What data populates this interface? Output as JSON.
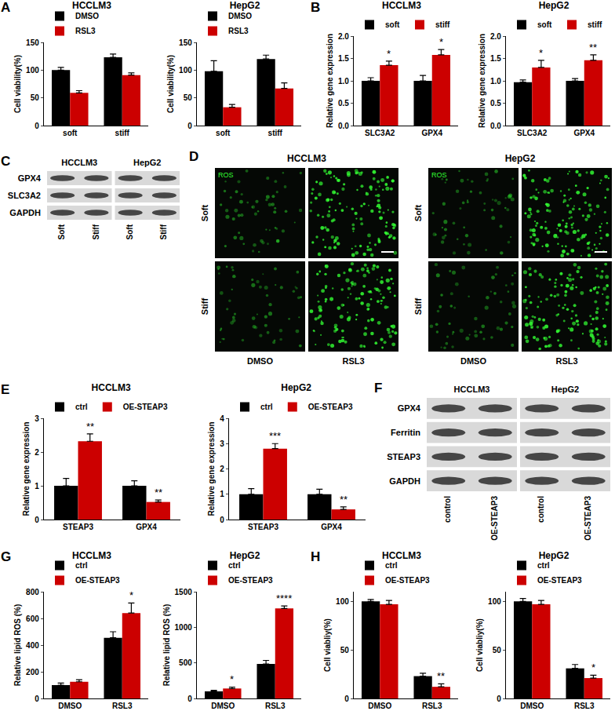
{
  "chart_data": [
    {
      "panel": "A",
      "type": "bar",
      "title": "HCCLM3",
      "categories": [
        "soft",
        "stiff"
      ],
      "ylabel": "Cell viability(%)",
      "ylim": [
        0,
        150
      ],
      "yticks": [
        0,
        50,
        100,
        150
      ],
      "grid": false,
      "legend": "top",
      "series": [
        {
          "name": "DMSO",
          "color": "#000000",
          "values": [
            100,
            123
          ],
          "errors": [
            5,
            6
          ]
        },
        {
          "name": "RSL3",
          "color": "#cc0000",
          "values": [
            59,
            91
          ],
          "errors": [
            4,
            4
          ]
        }
      ]
    },
    {
      "type": "bar",
      "title": "HepG2",
      "categories": [
        "soft",
        "stiff"
      ],
      "ylabel": "Cell viability(%)",
      "ylim": [
        0,
        150
      ],
      "yticks": [
        0,
        50,
        100,
        150
      ],
      "grid": false,
      "legend": "top",
      "series": [
        {
          "name": "DMSO",
          "color": "#000000",
          "values": [
            98,
            120
          ],
          "errors": [
            19,
            7
          ]
        },
        {
          "name": "RSL3",
          "color": "#cc0000",
          "values": [
            33,
            67
          ],
          "errors": [
            5,
            10
          ]
        }
      ]
    },
    {
      "panel": "B",
      "type": "bar",
      "title": "HCCLM3",
      "categories": [
        "SLC3A2",
        "GPX4"
      ],
      "ylabel": "Relative gene expression",
      "ylim": [
        0,
        2
      ],
      "yticks": [
        {
          "value": 0,
          "label": "0.0"
        },
        {
          "value": 0.5,
          "label": "0.5"
        },
        {
          "value": 1,
          "label": "1.0"
        },
        {
          "value": 1.5,
          "label": "1.5"
        },
        {
          "value": 2,
          "label": "2.0"
        }
      ],
      "grid": false,
      "legend": "top",
      "series": [
        {
          "name": "soft",
          "color": "#000000",
          "values": [
            1.0,
            1.0
          ],
          "errors": [
            0.07,
            0.12
          ]
        },
        {
          "name": "stiff",
          "color": "#cc0000",
          "values": [
            1.35,
            1.58
          ],
          "errors": [
            0.09,
            0.12
          ]
        }
      ],
      "annotations": [
        {
          "category": "SLC3A2",
          "series": "stiff",
          "text": "*"
        },
        {
          "category": "GPX4",
          "series": "stiff",
          "text": "*"
        }
      ]
    },
    {
      "type": "bar",
      "title": "HepG2",
      "categories": [
        "SLC3A2",
        "GPX4"
      ],
      "ylabel": "Relative gene expression",
      "ylim": [
        0,
        2
      ],
      "yticks": [
        {
          "value": 0,
          "label": "0.0"
        },
        {
          "value": 0.5,
          "label": "0.5"
        },
        {
          "value": 1,
          "label": "1.0"
        },
        {
          "value": 1.5,
          "label": "1.5"
        },
        {
          "value": 2,
          "label": "2.0"
        }
      ],
      "grid": false,
      "legend": "top",
      "series": [
        {
          "name": "soft",
          "color": "#000000",
          "values": [
            0.97,
            1.0
          ],
          "errors": [
            0.05,
            0.05
          ]
        },
        {
          "name": "stiff",
          "color": "#cc0000",
          "values": [
            1.3,
            1.46
          ],
          "errors": [
            0.16,
            0.12
          ]
        }
      ],
      "annotations": [
        {
          "category": "SLC3A2",
          "series": "stiff",
          "text": "*"
        },
        {
          "category": "GPX4",
          "series": "stiff",
          "text": "**"
        }
      ]
    },
    {
      "panel": "E",
      "type": "bar",
      "title": "HCCLM3",
      "categories": [
        "STEAP3",
        "GPX4"
      ],
      "ylabel": "Relative gene expression",
      "ylim": [
        0,
        3
      ],
      "yticks": [
        0,
        1,
        2,
        3
      ],
      "grid": false,
      "legend": "top",
      "series": [
        {
          "name": "ctrl",
          "color": "#000000",
          "values": [
            1.0,
            1.0
          ],
          "errors": [
            0.22,
            0.15
          ]
        },
        {
          "name": "OE-STEAP3",
          "color": "#cc0000",
          "values": [
            2.32,
            0.52
          ],
          "errors": [
            0.22,
            0.06
          ]
        }
      ],
      "annotations": [
        {
          "category": "STEAP3",
          "series": "OE-STEAP3",
          "text": "**"
        },
        {
          "category": "GPX4",
          "series": "OE-STEAP3",
          "text": "**"
        }
      ]
    },
    {
      "type": "bar",
      "title": "HepG2",
      "categories": [
        "STEAP3",
        "GPX4"
      ],
      "ylabel": "Relative gene expression",
      "ylim": [
        0,
        4
      ],
      "yticks": [
        0,
        1,
        2,
        3,
        4
      ],
      "grid": false,
      "legend": "top",
      "series": [
        {
          "name": "ctrl",
          "color": "#000000",
          "values": [
            1.0,
            1.0
          ],
          "errors": [
            0.22,
            0.2
          ]
        },
        {
          "name": "OE-STEAP3",
          "color": "#cc0000",
          "values": [
            2.8,
            0.4
          ],
          "errors": [
            0.2,
            0.1
          ]
        }
      ],
      "annotations": [
        {
          "category": "STEAP3",
          "series": "OE-STEAP3",
          "text": "***"
        },
        {
          "category": "GPX4",
          "series": "OE-STEAP3",
          "text": "**"
        }
      ]
    },
    {
      "panel": "G",
      "type": "bar",
      "title": "HCCLM3",
      "categories": [
        "DMSO",
        "RSL3"
      ],
      "ylabel": "Relative lipid ROS (%)",
      "ylim": [
        0,
        800
      ],
      "yticks": [
        0,
        200,
        400,
        600,
        800
      ],
      "grid": false,
      "legend": "top",
      "series": [
        {
          "name": "ctrl",
          "color": "#000000",
          "values": [
            100,
            455
          ],
          "errors": [
            15,
            45
          ]
        },
        {
          "name": "OE-STEAP3",
          "color": "#cc0000",
          "values": [
            125,
            640
          ],
          "errors": [
            15,
            75
          ]
        }
      ],
      "annotations": [
        {
          "category": "RSL3",
          "series": "OE-STEAP3",
          "text": "*"
        }
      ]
    },
    {
      "type": "bar",
      "title": "HepG2",
      "categories": [
        "DMSO",
        "RSL3"
      ],
      "ylabel": "Relative lipid ROS (%)",
      "ylim": [
        0,
        1500
      ],
      "yticks": [
        0,
        500,
        1000,
        1500
      ],
      "grid": false,
      "legend": "top",
      "series": [
        {
          "name": "ctrl",
          "color": "#000000",
          "values": [
            100,
            485
          ],
          "errors": [
            15,
            50
          ]
        },
        {
          "name": "OE-STEAP3",
          "color": "#cc0000",
          "values": [
            140,
            1265
          ],
          "errors": [
            20,
            35
          ]
        }
      ],
      "annotations": [
        {
          "category": "DMSO",
          "series": "OE-STEAP3",
          "text": "*"
        },
        {
          "category": "RSL3",
          "series": "OE-STEAP3",
          "text": "****"
        }
      ]
    },
    {
      "panel": "H",
      "type": "bar",
      "title": "HCCLM3",
      "categories": [
        "DMSO",
        "RSL3"
      ],
      "ylabel": "Cell viabliy(%)",
      "ylim": [
        0,
        110
      ],
      "yticks": [
        0,
        50,
        100
      ],
      "grid": false,
      "legend": "top",
      "series": [
        {
          "name": "ctrl",
          "color": "#000000",
          "values": [
            100,
            23
          ],
          "errors": [
            2,
            3
          ]
        },
        {
          "name": "OE-STEAP3",
          "color": "#cc0000",
          "values": [
            97,
            12
          ],
          "errors": [
            4,
            3
          ]
        }
      ],
      "annotations": [
        {
          "category": "RSL3",
          "series": "OE-STEAP3",
          "text": "**"
        }
      ]
    },
    {
      "type": "bar",
      "title": "HepG2",
      "categories": [
        "DMSO",
        "RSL3"
      ],
      "ylabel": "Cell viabliy(%)",
      "ylim": [
        0,
        110
      ],
      "yticks": [
        0,
        50,
        100
      ],
      "grid": false,
      "legend": "top",
      "series": [
        {
          "name": "ctrl",
          "color": "#000000",
          "values": [
            100,
            31
          ],
          "errors": [
            3,
            4
          ]
        },
        {
          "name": "OE-STEAP3",
          "color": "#cc0000",
          "values": [
            97,
            21
          ],
          "errors": [
            4,
            3
          ]
        }
      ],
      "annotations": [
        {
          "category": "RSL3",
          "series": "OE-STEAP3",
          "text": "*"
        }
      ]
    }
  ],
  "blots": [
    {
      "panel": "C",
      "groups": [
        "HCCLM3",
        "HepG2"
      ],
      "lanes": [
        "Soft",
        "Stiff"
      ],
      "rows": [
        "GPX4",
        "SLC3A2",
        "GAPDH"
      ]
    },
    {
      "panel": "F",
      "groups": [
        "HCCLM3",
        "HepG2"
      ],
      "lanes": [
        "control",
        "OE-STEAP3"
      ],
      "rows": [
        "GPX4",
        "Ferritin",
        "STEAP3",
        "GAPDH"
      ]
    }
  ],
  "images": {
    "panel": "D",
    "groups": [
      "HCCLM3",
      "HepG2"
    ],
    "rows": [
      "Soft",
      "Stiff"
    ],
    "columns": [
      "DMSO",
      "RSL3"
    ],
    "stain": "ROS"
  }
}
